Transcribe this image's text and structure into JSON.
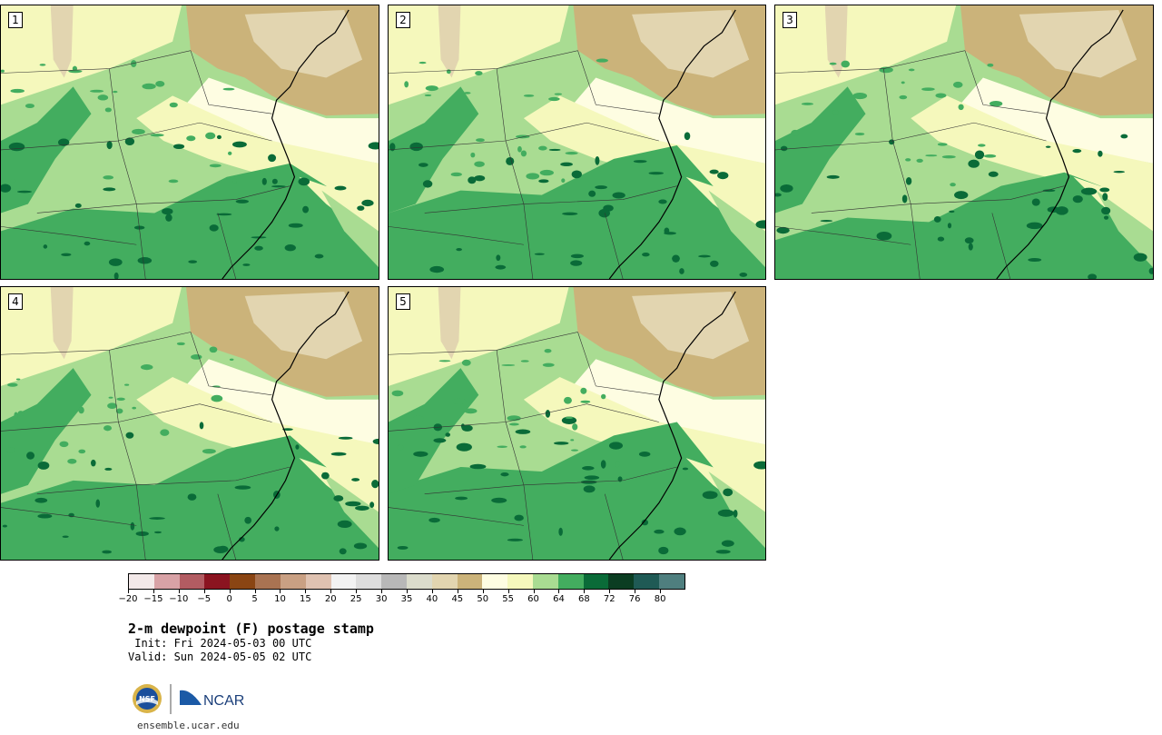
{
  "panels": [
    {
      "number": "1"
    },
    {
      "number": "2"
    },
    {
      "number": "3"
    },
    {
      "number": "4"
    },
    {
      "number": "5"
    }
  ],
  "colorbar": {
    "colors": [
      "#f3e9e9",
      "#d8a2a6",
      "#b25c62",
      "#8b1420",
      "#8a4513",
      "#a97352",
      "#c9a083",
      "#dfc2b1",
      "#f2f2f2",
      "#dddddd",
      "#b8b8b8",
      "#dbdccc",
      "#e2d5b0",
      "#cbb37a",
      "#fefde2",
      "#f5f8bc",
      "#a9dc92",
      "#43ad5f",
      "#0a6b38",
      "#0b3d22",
      "#1f5a55",
      "#4f7f7f"
    ],
    "ticks": [
      "−20",
      "−15",
      "−10",
      "−5",
      "0",
      "5",
      "10",
      "15",
      "20",
      "25",
      "30",
      "35",
      "40",
      "45",
      "50",
      "55",
      "60",
      "64",
      "68",
      "72",
      "76",
      "80"
    ]
  },
  "title": "2-m dewpoint (F) postage stamp",
  "init": " Init: Fri 2024-05-03 00 UTC",
  "valid": "Valid: Sun 2024-05-05 02 UTC",
  "logos": {
    "nsf": "NSF",
    "ncar": "NCAR"
  },
  "website": "ensemble.ucar.edu",
  "map_colors": {
    "tan": "#cbb37a",
    "light_tan": "#e2d5b0",
    "cream": "#fefde2",
    "pale_yellow": "#f5f8bc",
    "light_green": "#a9dc92",
    "green": "#43ad5f",
    "dark_green": "#0a6b38"
  }
}
